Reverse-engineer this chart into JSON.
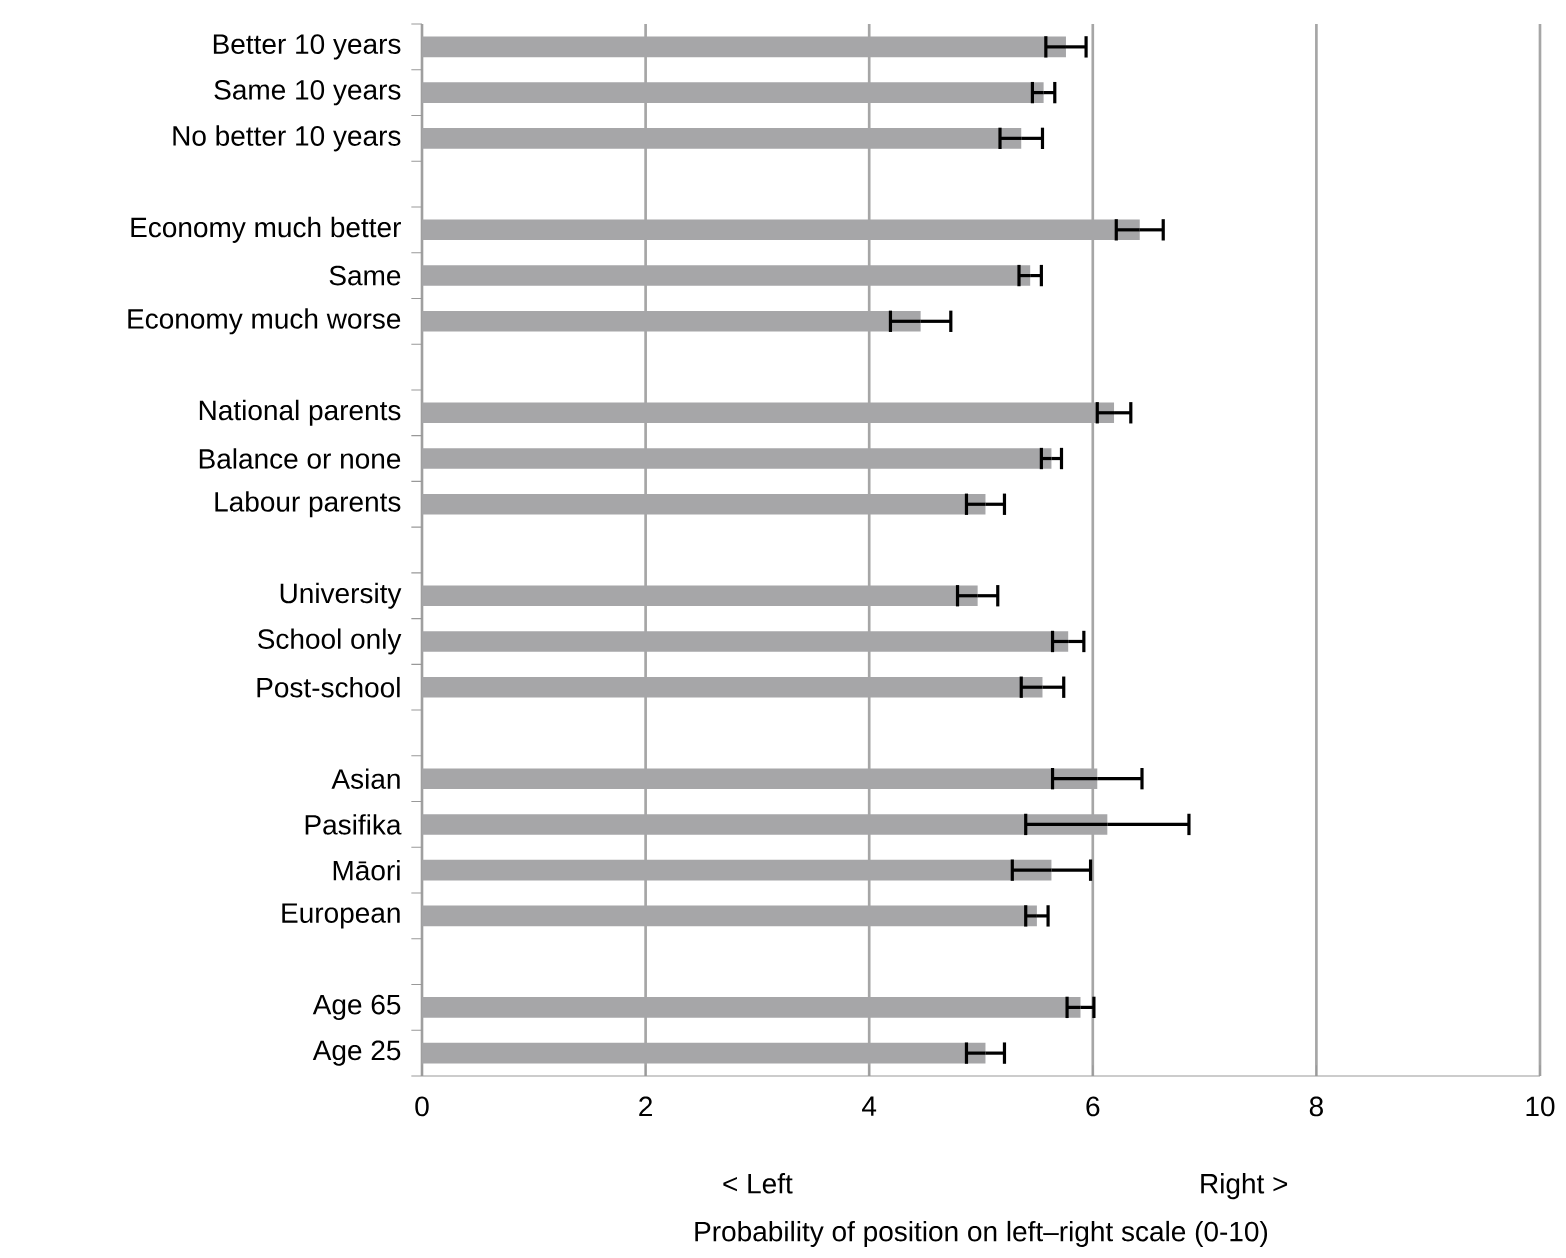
{
  "chart_data": {
    "type": "bar",
    "orientation": "horizontal",
    "xlabel": "Probability of position on left–right scale (0-10)",
    "annotations": [
      "< Left",
      "Right >"
    ],
    "categories": [
      "Better 10 years",
      "Same 10 years",
      "No better 10 years",
      null,
      "Economy much better",
      "Same",
      "Economy much worse",
      null,
      "National parents",
      "Balance or none",
      "Labour parents",
      null,
      "University",
      "School only",
      "Post-school",
      null,
      "Asian",
      "Pasifika",
      "Māori",
      "European",
      null,
      "Age 65",
      "Age 25"
    ],
    "values": [
      5.76,
      5.56,
      5.36,
      null,
      6.42,
      5.44,
      4.46,
      null,
      6.19,
      5.63,
      5.04,
      null,
      4.97,
      5.78,
      5.55,
      null,
      6.04,
      6.13,
      5.63,
      5.5,
      null,
      5.89,
      5.04
    ],
    "errors": [
      0.18,
      0.1,
      0.19,
      null,
      0.21,
      0.1,
      0.27,
      null,
      0.15,
      0.09,
      0.17,
      null,
      0.18,
      0.14,
      0.19,
      null,
      0.4,
      0.73,
      0.35,
      0.1,
      null,
      0.12,
      0.17
    ],
    "color": "#a6a6a8",
    "xlim": [
      0,
      10
    ],
    "xticks": [
      0,
      2,
      4,
      6,
      8,
      10
    ],
    "grid": "x"
  }
}
